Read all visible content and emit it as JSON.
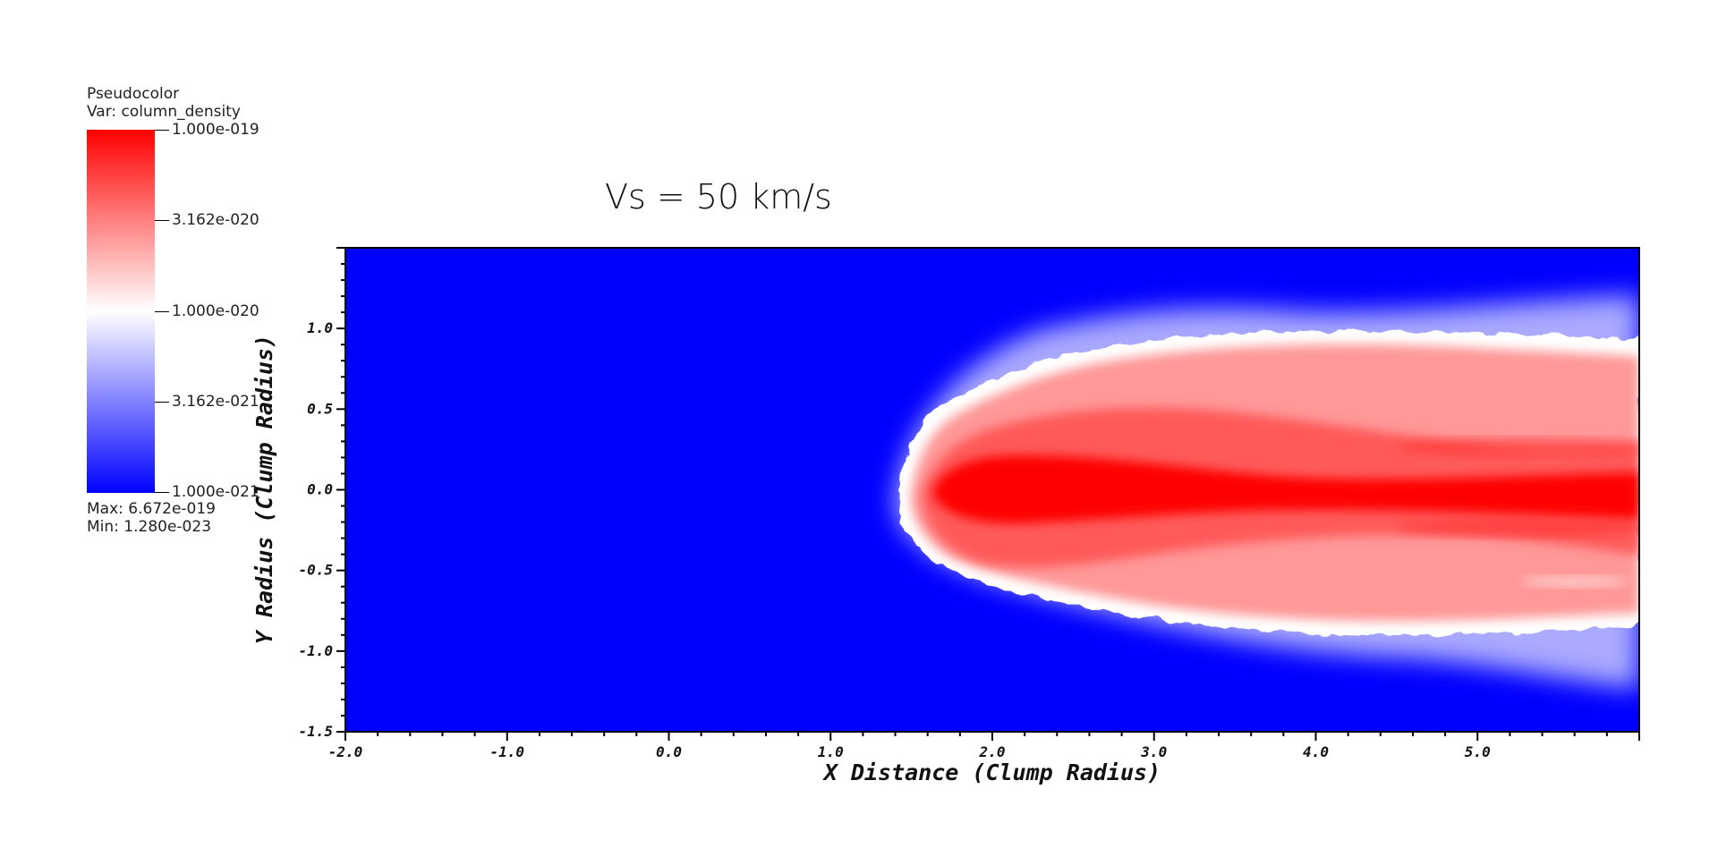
{
  "legend": {
    "plot_type": "Pseudocolor",
    "var_label": "Var: column_density",
    "ticks": [
      "1.000e-019",
      "3.162e-020",
      "1.000e-020",
      "3.162e-021",
      "1.000e-021"
    ],
    "max_label": "Max:  6.672e-019",
    "min_label": "Min:  1.280e-023",
    "colors": {
      "high": "#ff0000",
      "mid": "#ffffff",
      "low": "#0000ff"
    }
  },
  "chart_data": {
    "type": "heatmap",
    "title": "Vs = 50 km/s",
    "xlabel": "X Distance (Clump Radius)",
    "ylabel": "Y Radius (Clump Radius)",
    "xlim": [
      -2.0,
      6.0
    ],
    "ylim": [
      -1.5,
      1.5
    ],
    "x_ticks": [
      "-2.0",
      "-1.0",
      "0.0",
      "1.0",
      "2.0",
      "3.0",
      "4.0",
      "5.0"
    ],
    "y_ticks": [
      "-1.5",
      "-1.0",
      "-0.5",
      "0.0",
      "0.5",
      "1.0"
    ],
    "colormap": [
      "#0000ff",
      "#ffffff",
      "#ff0000"
    ],
    "scale": "log",
    "background_color": "#0000ff",
    "grid": false
  }
}
